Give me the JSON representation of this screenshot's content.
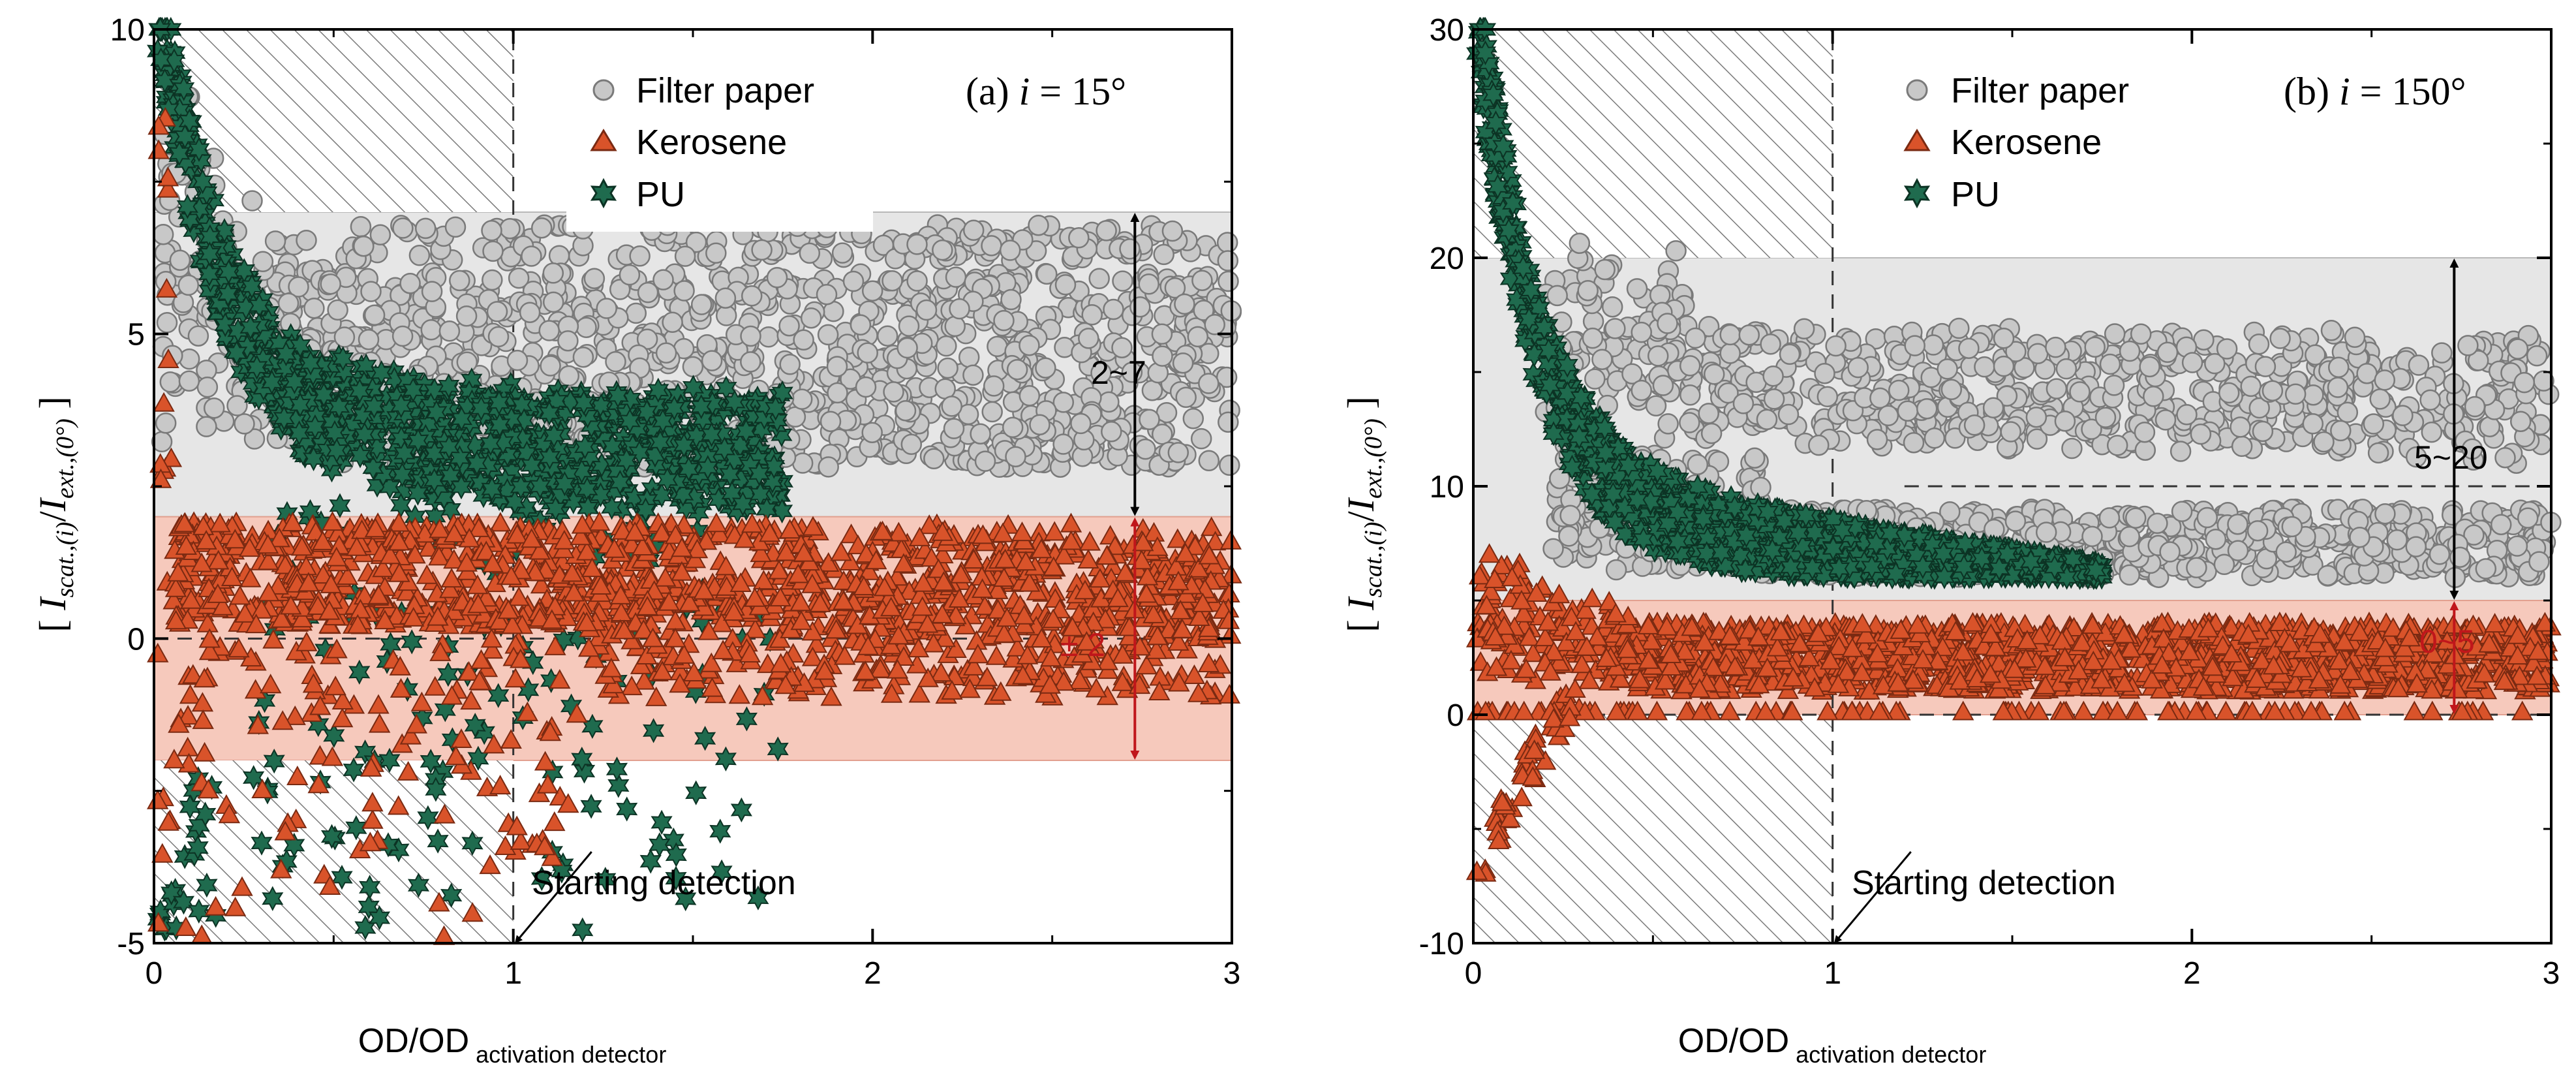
{
  "colors": {
    "filter_paper_fill": "#c8c8c8",
    "filter_paper_edge": "#7a7a7a",
    "kerosene_fill": "#d9532a",
    "kerosene_edge": "#7a2a12",
    "pu_fill": "#1f6b4e",
    "pu_edge": "#0c3324",
    "gray_band": "#e6e6e6",
    "red_band": "#f6c9bc",
    "red_arrow": "#c0161b",
    "black_arrow": "#000000"
  },
  "chart_data": [
    {
      "type": "scatter",
      "panel": "a",
      "title_prefix": "(a) ",
      "title_var": "i",
      "title_eq": " = 15°",
      "xlabel_main": "OD/OD",
      "xlabel_sub": " activation detector",
      "ylabel": "[ Iscat.,(i)/Iext.,(0°) ]",
      "ylabel_parts": {
        "open": "[ ",
        "a": "I",
        "asub": "scat.,(i)",
        "slash": "/",
        "b": "I",
        "bsub": "ext.,(0°)",
        "close": " ]"
      },
      "xlim": [
        0,
        3
      ],
      "ylim": [
        -5,
        10
      ],
      "xticks": [
        0,
        1,
        2,
        3
      ],
      "xtick_labels": [
        "0",
        "1",
        "2",
        "3"
      ],
      "yticks": [
        -5,
        0,
        5,
        10
      ],
      "ytick_labels": [
        "-5",
        "0",
        "5",
        "10"
      ],
      "hatched_regions": [
        {
          "x": [
            0,
            1
          ],
          "y": [
            7,
            10
          ]
        },
        {
          "x": [
            0,
            1
          ],
          "y": [
            -5,
            -2
          ]
        }
      ],
      "bands": [
        {
          "name": "gray",
          "x": [
            0,
            3
          ],
          "y": [
            2,
            7
          ]
        },
        {
          "name": "red",
          "x": [
            0,
            3
          ],
          "y": [
            -2,
            2
          ]
        }
      ],
      "dashed_lines": [
        {
          "x": [
            1,
            1
          ],
          "y": [
            -5,
            10
          ]
        },
        {
          "x": [
            0,
            3
          ],
          "y": [
            0,
            0
          ]
        }
      ],
      "annotations": [
        {
          "text": "2~7",
          "x": 2.73,
          "y": 4.5,
          "arrow_y": [
            2,
            7
          ],
          "color": "black"
        },
        {
          "text": "± 2",
          "x": 2.73,
          "y": -0.1,
          "arrow_y": [
            -2,
            2
          ],
          "color": "red"
        }
      ],
      "starting_detection": {
        "text": "Starting detection",
        "at": [
          1,
          -5
        ]
      },
      "legend": {
        "position": "top-center",
        "entries": [
          "Filter paper",
          "Kerosene",
          "PU"
        ]
      },
      "series": [
        {
          "name": "Filter paper",
          "marker": "circle",
          "trend": "upper cloud y≈3–6.5, decays from ~9 near x=0"
        },
        {
          "name": "Kerosene",
          "marker": "triangle",
          "trend": "band y≈0–2 for x>0.5; scattered below 0 near x<1"
        },
        {
          "name": "PU",
          "marker": "star",
          "trend": "starts near 10 at x≈0, decays to y≈2–4 by x≈1.7"
        }
      ]
    },
    {
      "type": "scatter",
      "panel": "b",
      "title_prefix": "(b) ",
      "title_var": "i",
      "title_eq": " = 150°",
      "xlabel_main": "OD/OD",
      "xlabel_sub": " activation detector",
      "ylabel": "[ Iscat.,(i)/Iext.,(0°) ]",
      "ylabel_parts": {
        "open": "[ ",
        "a": "I",
        "asub": "scat.,(i)",
        "slash": "/",
        "b": "I",
        "bsub": "ext.,(0°)",
        "close": " ]"
      },
      "xlim": [
        0,
        3
      ],
      "ylim": [
        -10,
        30
      ],
      "xticks": [
        0,
        1,
        2,
        3
      ],
      "xtick_labels": [
        "0",
        "1",
        "2",
        "3"
      ],
      "yticks": [
        -10,
        0,
        10,
        20,
        30
      ],
      "ytick_labels": [
        "-10",
        "0",
        "10",
        "20",
        "30"
      ],
      "hatched_regions": [
        {
          "x": [
            0,
            1
          ],
          "y": [
            20,
            30
          ]
        },
        {
          "x": [
            0,
            1
          ],
          "y": [
            -10,
            0
          ]
        }
      ],
      "bands": [
        {
          "name": "gray",
          "x": [
            0,
            3
          ],
          "y": [
            5,
            20
          ]
        },
        {
          "name": "red",
          "x": [
            0,
            3
          ],
          "y": [
            0,
            5
          ]
        }
      ],
      "dashed_lines": [
        {
          "x": [
            1,
            1
          ],
          "y": [
            -10,
            30
          ]
        },
        {
          "x": [
            0,
            3
          ],
          "y": [
            0,
            0
          ]
        },
        {
          "x": [
            1.2,
            3
          ],
          "y": [
            10,
            10
          ]
        }
      ],
      "annotations": [
        {
          "text": "5~20",
          "x": 2.73,
          "y": 11.5,
          "arrow_y": [
            5,
            20
          ],
          "color": "black"
        },
        {
          "text": "0~5",
          "x": 2.73,
          "y": 2.5,
          "arrow_y": [
            0,
            5
          ],
          "color": "red"
        }
      ],
      "starting_detection": {
        "text": "Starting detection",
        "at": [
          1,
          -10
        ]
      },
      "legend": {
        "position": "top-center",
        "entries": [
          "Filter paper",
          "Kerosene",
          "PU"
        ]
      },
      "series": [
        {
          "name": "Filter paper",
          "marker": "circle",
          "trend": "two branches y≈12–16 and y≈6–9 for x>0.5"
        },
        {
          "name": "Kerosene",
          "marker": "triangle",
          "trend": "band y≈1–4; drops to -10 near x≈0.05"
        },
        {
          "name": "PU",
          "marker": "star",
          "trend": "starts near 30 at x≈0, decays to y≈6–12 by x≈1.7"
        }
      ]
    }
  ]
}
